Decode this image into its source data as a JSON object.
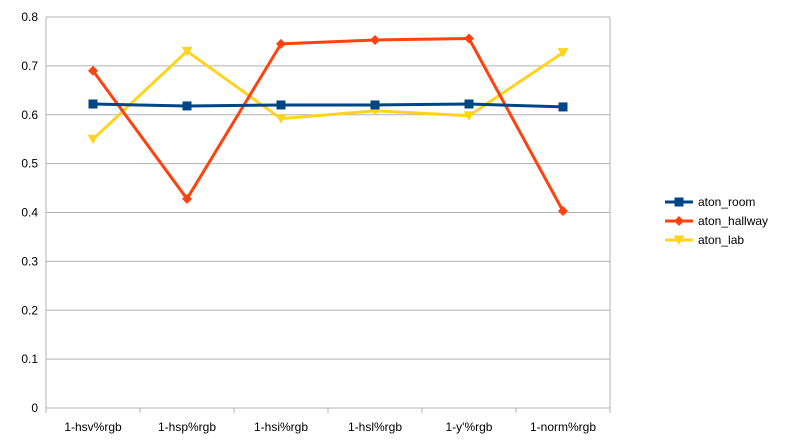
{
  "chart_data": {
    "type": "line",
    "categories": [
      "1-hsv%rgb",
      "1-hsp%rgb",
      "1-hsi%rgb",
      "1-hsl%rgb",
      "1-y'%rgb",
      "1-norm%rgb"
    ],
    "ylim": [
      0,
      0.8
    ],
    "yticks": [
      0,
      0.1,
      0.2,
      0.3,
      0.4,
      0.5,
      0.6,
      0.7,
      0.8
    ],
    "ytick_labels": [
      "0",
      "0.1",
      "0.2",
      "0.3",
      "0.4",
      "0.5",
      "0.6",
      "0.7",
      "0.8"
    ],
    "grid": "horizontal",
    "legend": "right",
    "series": [
      {
        "name": "aton_room",
        "color": "#004586",
        "marker": "square",
        "values": [
          0.622,
          0.618,
          0.62,
          0.62,
          0.622,
          0.616
        ]
      },
      {
        "name": "aton_hallway",
        "color": "#ff420e",
        "marker": "diamond",
        "values": [
          0.69,
          0.428,
          0.745,
          0.753,
          0.756,
          0.403
        ]
      },
      {
        "name": "aton_lab",
        "color": "#ffd320",
        "marker": "triangle-down",
        "values": [
          0.55,
          0.73,
          0.592,
          0.608,
          0.598,
          0.727
        ]
      }
    ]
  }
}
